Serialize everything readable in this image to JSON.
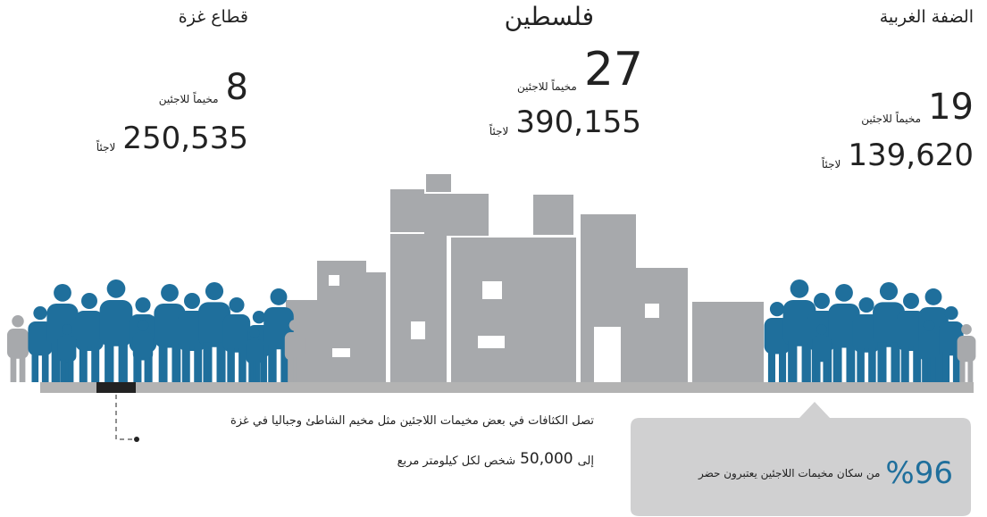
{
  "regions": [
    {
      "name": "قطاع غزة",
      "camps": "8",
      "camps_label": "مخيماً للاجئين",
      "refugees": "250,535",
      "refugees_label": "لاجئاً"
    },
    {
      "name": "فلسطين",
      "camps": "27",
      "camps_label": "مخيماً للاجئين",
      "refugees": "390,155",
      "refugees_label": "لاجئاً"
    },
    {
      "name": "الضفة الغربية",
      "camps": "19",
      "camps_label": "مخيماً للاجئين",
      "refugees": "139,620",
      "refugees_label": "لاجئاً"
    }
  ],
  "density_note": {
    "line1": "تصل الكثافات في بعض مخيمات اللاجئين مثل مخيم الشاطئ وجباليا في غزة",
    "line2_start": "إلى",
    "line2_number": "50,000",
    "line2_end": "شخص لكل كيلومتر مربع"
  },
  "urban_callout": {
    "percent": "%96",
    "text": "من سكان مخيمات اللاجئين يعتبرون حضر"
  }
}
